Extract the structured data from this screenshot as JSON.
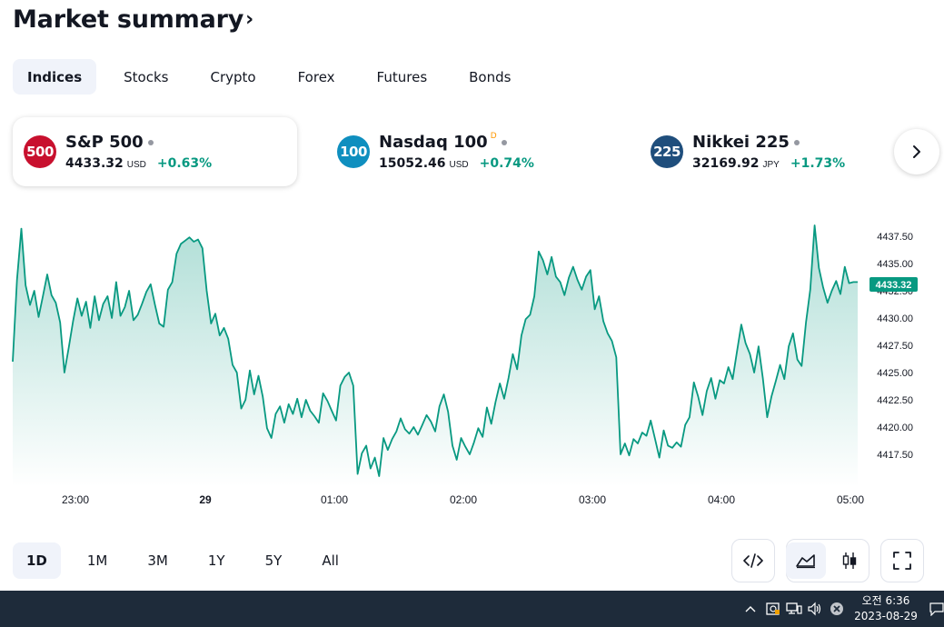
{
  "header": {
    "title": "Market summary",
    "title_chevron": "›"
  },
  "tabs": [
    {
      "label": "Indices",
      "active": true
    },
    {
      "label": "Stocks",
      "active": false
    },
    {
      "label": "Crypto",
      "active": false
    },
    {
      "label": "Forex",
      "active": false
    },
    {
      "label": "Futures",
      "active": false
    },
    {
      "label": "Bonds",
      "active": false
    }
  ],
  "cards": [
    {
      "badge": "500",
      "badge_color": "#c8102e",
      "name": "S&P 500",
      "flag": "",
      "price": "4433.32",
      "currency": "USD",
      "change": "+0.63%"
    },
    {
      "badge": "100",
      "badge_color": "#0f8fbf",
      "name": "Nasdaq 100",
      "flag": "D",
      "price": "15052.46",
      "currency": "USD",
      "change": "+0.74%"
    },
    {
      "badge": "225",
      "badge_color": "#1f4e7c",
      "name": "Nikkei 225",
      "flag": "",
      "price": "32169.92",
      "currency": "JPY",
      "change": "+1.73%"
    }
  ],
  "next_icon": "chevron-right-icon",
  "chart_data": {
    "type": "area",
    "series": [
      {
        "values": [
          4426.0,
          4433.5,
          4438.2,
          4433.0,
          4431.2,
          4432.5,
          4430.1,
          4432.0,
          4434.0,
          4432.1,
          4431.4,
          4429.6,
          4425.0,
          4427.3,
          4429.7,
          4431.8,
          4430.2,
          4431.5,
          4429.1,
          4432.0,
          4429.8,
          4431.3,
          4432.0,
          4430.0,
          4433.3,
          4430.2,
          4431.0,
          4432.5,
          4429.8,
          4430.3,
          4431.3,
          4432.4,
          4433.1,
          4431.2,
          4429.5,
          4429.2,
          4432.6,
          4433.3,
          4435.9,
          4436.8,
          4437.1,
          4437.4,
          4437.0,
          4437.2,
          4436.4,
          4432.5,
          4429.5,
          4430.4,
          4428.4,
          4429.1,
          4428.1,
          4425.7,
          4425.0,
          4421.7,
          4422.5,
          4425.2,
          4423.0,
          4424.7,
          4422.8,
          4419.9,
          4419.0,
          4421.2,
          4421.9,
          4420.4,
          4422.1,
          4421.2,
          4422.6,
          4420.9,
          4422.5,
          4421.5,
          4421.0,
          4420.4,
          4423.1,
          4422.4,
          4421.5,
          4420.6,
          4423.8,
          4424.6,
          4425.0,
          4423.8,
          4415.7,
          4417.6,
          4418.3,
          4416.2,
          4417.2,
          4415.5,
          4419.0,
          4417.9,
          4418.9,
          4419.6,
          4420.8,
          4419.8,
          4419.4,
          4420.0,
          4419.3,
          4420.2,
          4421.1,
          4420.5,
          4419.6,
          4421.9,
          4423.0,
          4421.4,
          4418.3,
          4417.0,
          4419.0,
          4418.2,
          4417.5,
          4418.6,
          4419.9,
          4419.1,
          4421.8,
          4420.3,
          4422.3,
          4424.0,
          4422.6,
          4424.5,
          4426.7,
          4425.3,
          4428.4,
          4429.9,
          4430.3,
          4432.0,
          4436.1,
          4435.3,
          4434.0,
          4435.6,
          4433.8,
          4433.3,
          4432.1,
          4433.7,
          4434.7,
          4433.5,
          4432.6,
          4433.8,
          4434.4,
          4430.8,
          4432.0,
          4429.7,
          4428.6,
          4427.9,
          4426.4,
          4417.5,
          4418.5,
          4417.4,
          4418.9,
          4418.5,
          4419.5,
          4419.2,
          4420.6,
          4418.9,
          4417.2,
          4419.7,
          4418.3,
          4418.1,
          4418.6,
          4418.2,
          4420.2,
          4420.9,
          4424.1,
          4422.8,
          4421.1,
          4423.3,
          4424.5,
          4422.6,
          4424.3,
          4424.0,
          4425.5,
          4424.4,
          4426.9,
          4429.4,
          4427.7,
          4426.7,
          4425.0,
          4427.4,
          4424.5,
          4420.9,
          4422.8,
          4424.2,
          4425.7,
          4424.4,
          4427.4,
          4428.6,
          4426.2,
          4425.6,
          4429.6,
          4432.6,
          4438.5,
          4434.6,
          4432.8,
          4431.4,
          4432.5,
          4433.4,
          4432.2,
          4434.7,
          4433.2,
          4433.3,
          4433.3
        ]
      }
    ],
    "x_ticks": [
      "23:00",
      "29",
      "01:00",
      "02:00",
      "03:00",
      "04:00",
      "05:00"
    ],
    "y_ticks": [
      4437.5,
      4435.0,
      4432.5,
      4430.0,
      4427.5,
      4425.0,
      4422.5,
      4420.0,
      4417.5
    ],
    "ylim": [
      4414.5,
      4439.5
    ],
    "last_value": "4433.32",
    "line_color": "#089981"
  },
  "ranges": [
    {
      "label": "1D",
      "active": true
    },
    {
      "label": "1M",
      "active": false
    },
    {
      "label": "3M",
      "active": false
    },
    {
      "label": "1Y",
      "active": false
    },
    {
      "label": "5Y",
      "active": false
    },
    {
      "label": "All",
      "active": false
    }
  ],
  "taskbar": {
    "time": "오전 6:36",
    "date": "2023-08-29"
  }
}
